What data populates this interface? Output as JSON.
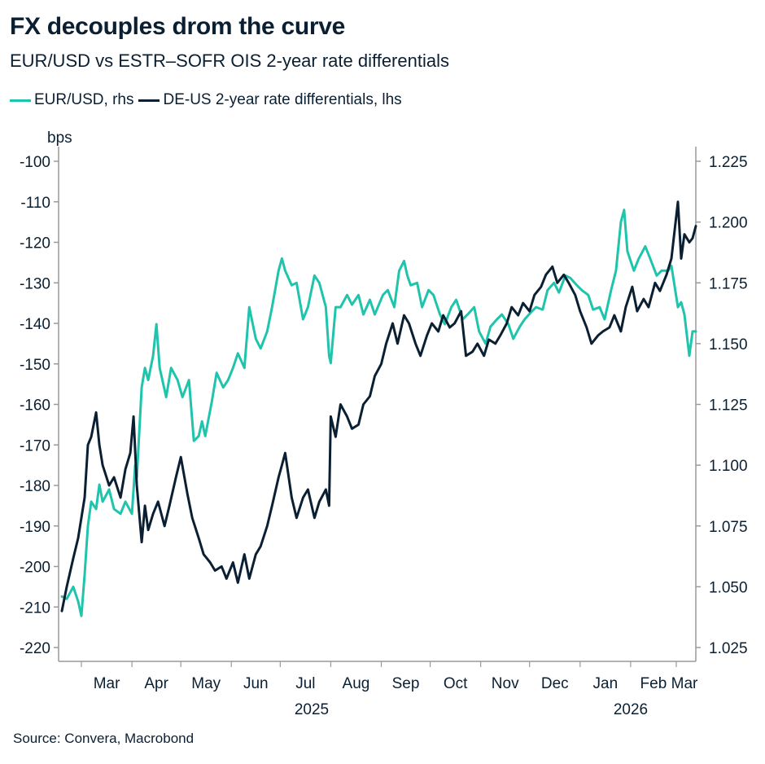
{
  "title": "FX decouples drom the curve",
  "subtitle": "EUR/USD vs ESTR–SOFR OIS 2-year rate differentials",
  "source": "Source: Convera, Macrobond",
  "colors": {
    "eurusd": "#1fc4ac",
    "diff": "#0b1f33",
    "axis": "#9a9a9a"
  },
  "chart_data": {
    "type": "line",
    "left_axis": {
      "unit_label": "bps",
      "ylim": [
        -220,
        -100
      ],
      "ticks": [
        "-100",
        "-110",
        "-120",
        "-130",
        "-140",
        "-150",
        "-160",
        "-170",
        "-180",
        "-190",
        "-200",
        "-210",
        "-220"
      ]
    },
    "right_axis": {
      "ylim": [
        1.025,
        1.225
      ],
      "ticks": [
        "1.225",
        "1.200",
        "1.175",
        "1.150",
        "1.125",
        "1.100",
        "1.075",
        "1.050",
        "1.025"
      ]
    },
    "x_months": [
      "Mar",
      "Apr",
      "May",
      "Jun",
      "Jul",
      "Aug",
      "Sep",
      "Oct",
      "Nov",
      "Dec",
      "Jan",
      "Feb",
      "Mar"
    ],
    "x_years": [
      "2025",
      "2026"
    ],
    "x_range": [
      "2025-02-15",
      "2026-03-13"
    ],
    "series": [
      {
        "name": "EUR/USD, rhs",
        "axis": "right",
        "color": "#1fc4ac",
        "points": [
          [
            "2025-02-17",
            1.046
          ],
          [
            "2025-02-20",
            1.045
          ],
          [
            "2025-02-24",
            1.05
          ],
          [
            "2025-02-27",
            1.044
          ],
          [
            "2025-03-01",
            1.038
          ],
          [
            "2025-03-03",
            1.055
          ],
          [
            "2025-03-05",
            1.075
          ],
          [
            "2025-03-07",
            1.085
          ],
          [
            "2025-03-10",
            1.082
          ],
          [
            "2025-03-12",
            1.092
          ],
          [
            "2025-03-14",
            1.085
          ],
          [
            "2025-03-18",
            1.09
          ],
          [
            "2025-03-21",
            1.082
          ],
          [
            "2025-03-25",
            1.08
          ],
          [
            "2025-03-28",
            1.085
          ],
          [
            "2025-04-01",
            1.08
          ],
          [
            "2025-04-03",
            1.1
          ],
          [
            "2025-04-04",
            1.095
          ],
          [
            "2025-04-07",
            1.132
          ],
          [
            "2025-04-09",
            1.14
          ],
          [
            "2025-04-11",
            1.135
          ],
          [
            "2025-04-14",
            1.145
          ],
          [
            "2025-04-16",
            1.158
          ],
          [
            "2025-04-18",
            1.14
          ],
          [
            "2025-04-22",
            1.128
          ],
          [
            "2025-04-25",
            1.14
          ],
          [
            "2025-04-29",
            1.135
          ],
          [
            "2025-05-02",
            1.128
          ],
          [
            "2025-05-06",
            1.135
          ],
          [
            "2025-05-09",
            1.11
          ],
          [
            "2025-05-12",
            1.112
          ],
          [
            "2025-05-14",
            1.118
          ],
          [
            "2025-05-16",
            1.112
          ],
          [
            "2025-05-20",
            1.126
          ],
          [
            "2025-05-23",
            1.138
          ],
          [
            "2025-05-27",
            1.132
          ],
          [
            "2025-05-30",
            1.135
          ],
          [
            "2025-06-02",
            1.14
          ],
          [
            "2025-06-05",
            1.146
          ],
          [
            "2025-06-09",
            1.14
          ],
          [
            "2025-06-12",
            1.165
          ],
          [
            "2025-06-16",
            1.152
          ],
          [
            "2025-06-19",
            1.148
          ],
          [
            "2025-06-23",
            1.155
          ],
          [
            "2025-06-26",
            1.165
          ],
          [
            "2025-06-30",
            1.18
          ],
          [
            "2025-07-02",
            1.185
          ],
          [
            "2025-07-04",
            1.18
          ],
          [
            "2025-07-08",
            1.174
          ],
          [
            "2025-07-11",
            1.175
          ],
          [
            "2025-07-15",
            1.16
          ],
          [
            "2025-07-18",
            1.165
          ],
          [
            "2025-07-22",
            1.178
          ],
          [
            "2025-07-25",
            1.175
          ],
          [
            "2025-07-29",
            1.165
          ],
          [
            "2025-07-31",
            1.145
          ],
          [
            "2025-08-01",
            1.142
          ],
          [
            "2025-08-04",
            1.165
          ],
          [
            "2025-08-07",
            1.165
          ],
          [
            "2025-08-11",
            1.17
          ],
          [
            "2025-08-14",
            1.166
          ],
          [
            "2025-08-18",
            1.17
          ],
          [
            "2025-08-21",
            1.162
          ],
          [
            "2025-08-25",
            1.168
          ],
          [
            "2025-08-28",
            1.162
          ],
          [
            "2025-09-02",
            1.17
          ],
          [
            "2025-09-05",
            1.172
          ],
          [
            "2025-09-09",
            1.165
          ],
          [
            "2025-09-12",
            1.18
          ],
          [
            "2025-09-15",
            1.184
          ],
          [
            "2025-09-17",
            1.178
          ],
          [
            "2025-09-19",
            1.174
          ],
          [
            "2025-09-23",
            1.175
          ],
          [
            "2025-09-26",
            1.165
          ],
          [
            "2025-09-30",
            1.172
          ],
          [
            "2025-10-03",
            1.17
          ],
          [
            "2025-10-07",
            1.162
          ],
          [
            "2025-10-10",
            1.158
          ],
          [
            "2025-10-14",
            1.165
          ],
          [
            "2025-10-17",
            1.168
          ],
          [
            "2025-10-21",
            1.16
          ],
          [
            "2025-10-24",
            1.162
          ],
          [
            "2025-10-28",
            1.165
          ],
          [
            "2025-10-31",
            1.155
          ],
          [
            "2025-11-04",
            1.15
          ],
          [
            "2025-11-07",
            1.157
          ],
          [
            "2025-11-11",
            1.16
          ],
          [
            "2025-11-14",
            1.162
          ],
          [
            "2025-11-18",
            1.158
          ],
          [
            "2025-11-21",
            1.152
          ],
          [
            "2025-11-25",
            1.157
          ],
          [
            "2025-11-28",
            1.16
          ],
          [
            "2025-12-02",
            1.163
          ],
          [
            "2025-12-05",
            1.165
          ],
          [
            "2025-12-09",
            1.164
          ],
          [
            "2025-12-12",
            1.172
          ],
          [
            "2025-12-16",
            1.175
          ],
          [
            "2025-12-19",
            1.171
          ],
          [
            "2025-12-23",
            1.178
          ],
          [
            "2025-12-26",
            1.177
          ],
          [
            "2025-12-30",
            1.174
          ],
          [
            "2026-01-02",
            1.172
          ],
          [
            "2026-01-06",
            1.17
          ],
          [
            "2026-01-09",
            1.164
          ],
          [
            "2026-01-13",
            1.165
          ],
          [
            "2026-01-16",
            1.16
          ],
          [
            "2026-01-20",
            1.172
          ],
          [
            "2026-01-23",
            1.18
          ],
          [
            "2026-01-26",
            1.2
          ],
          [
            "2026-01-28",
            1.205
          ],
          [
            "2026-01-30",
            1.188
          ],
          [
            "2026-02-03",
            1.18
          ],
          [
            "2026-02-06",
            1.185
          ],
          [
            "2026-02-10",
            1.19
          ],
          [
            "2026-02-13",
            1.185
          ],
          [
            "2026-02-17",
            1.178
          ],
          [
            "2026-02-20",
            1.18
          ],
          [
            "2026-02-24",
            1.18
          ],
          [
            "2026-02-26",
            1.182
          ],
          [
            "2026-03-02",
            1.165
          ],
          [
            "2026-03-04",
            1.167
          ],
          [
            "2026-03-06",
            1.162
          ],
          [
            "2026-03-09",
            1.145
          ],
          [
            "2026-03-11",
            1.155
          ],
          [
            "2026-03-13",
            1.155
          ]
        ]
      },
      {
        "name": "DE-US 2-year rate differentials, lhs",
        "axis": "left",
        "color": "#0b1f33",
        "points": [
          [
            "2025-02-17",
            -211
          ],
          [
            "2025-02-20",
            -205
          ],
          [
            "2025-02-24",
            -198
          ],
          [
            "2025-02-27",
            -193
          ],
          [
            "2025-03-01",
            -188
          ],
          [
            "2025-03-03",
            -183
          ],
          [
            "2025-03-05",
            -170
          ],
          [
            "2025-03-07",
            -168
          ],
          [
            "2025-03-10",
            -162
          ],
          [
            "2025-03-12",
            -170
          ],
          [
            "2025-03-14",
            -175
          ],
          [
            "2025-03-18",
            -180
          ],
          [
            "2025-03-21",
            -178
          ],
          [
            "2025-03-25",
            -183
          ],
          [
            "2025-03-28",
            -176
          ],
          [
            "2025-03-31",
            -172
          ],
          [
            "2025-04-02",
            -163
          ],
          [
            "2025-04-04",
            -180
          ],
          [
            "2025-04-07",
            -194
          ],
          [
            "2025-04-09",
            -185
          ],
          [
            "2025-04-11",
            -191
          ],
          [
            "2025-04-14",
            -187
          ],
          [
            "2025-04-17",
            -184
          ],
          [
            "2025-04-21",
            -190
          ],
          [
            "2025-04-24",
            -185
          ],
          [
            "2025-04-28",
            -178
          ],
          [
            "2025-05-01",
            -173
          ],
          [
            "2025-05-05",
            -182
          ],
          [
            "2025-05-08",
            -188
          ],
          [
            "2025-05-12",
            -193
          ],
          [
            "2025-05-15",
            -197
          ],
          [
            "2025-05-19",
            -199
          ],
          [
            "2025-05-22",
            -201
          ],
          [
            "2025-05-26",
            -200
          ],
          [
            "2025-05-29",
            -203
          ],
          [
            "2025-06-02",
            -199
          ],
          [
            "2025-06-05",
            -204
          ],
          [
            "2025-06-09",
            -197
          ],
          [
            "2025-06-12",
            -203
          ],
          [
            "2025-06-16",
            -197
          ],
          [
            "2025-06-19",
            -195
          ],
          [
            "2025-06-23",
            -190
          ],
          [
            "2025-06-26",
            -185
          ],
          [
            "2025-06-30",
            -178
          ],
          [
            "2025-07-02",
            -175
          ],
          [
            "2025-07-04",
            -172
          ],
          [
            "2025-07-08",
            -183
          ],
          [
            "2025-07-11",
            -188
          ],
          [
            "2025-07-15",
            -183
          ],
          [
            "2025-07-18",
            -181
          ],
          [
            "2025-07-22",
            -188
          ],
          [
            "2025-07-25",
            -184
          ],
          [
            "2025-07-29",
            -181
          ],
          [
            "2025-07-31",
            -185
          ],
          [
            "2025-08-01",
            -163
          ],
          [
            "2025-08-04",
            -168
          ],
          [
            "2025-08-07",
            -160
          ],
          [
            "2025-08-11",
            -163
          ],
          [
            "2025-08-14",
            -166
          ],
          [
            "2025-08-18",
            -165
          ],
          [
            "2025-08-21",
            -160
          ],
          [
            "2025-08-25",
            -158
          ],
          [
            "2025-08-28",
            -153
          ],
          [
            "2025-09-01",
            -150
          ],
          [
            "2025-09-04",
            -145
          ],
          [
            "2025-09-08",
            -140
          ],
          [
            "2025-09-11",
            -145
          ],
          [
            "2025-09-15",
            -138
          ],
          [
            "2025-09-18",
            -140
          ],
          [
            "2025-09-22",
            -145
          ],
          [
            "2025-09-25",
            -148
          ],
          [
            "2025-09-29",
            -143
          ],
          [
            "2025-10-02",
            -140
          ],
          [
            "2025-10-06",
            -142
          ],
          [
            "2025-10-09",
            -138
          ],
          [
            "2025-10-13",
            -141
          ],
          [
            "2025-10-16",
            -140
          ],
          [
            "2025-10-20",
            -137
          ],
          [
            "2025-10-23",
            -148
          ],
          [
            "2025-10-27",
            -147
          ],
          [
            "2025-10-30",
            -145
          ],
          [
            "2025-11-03",
            -148
          ],
          [
            "2025-11-06",
            -144
          ],
          [
            "2025-11-10",
            -145
          ],
          [
            "2025-11-13",
            -143
          ],
          [
            "2025-11-17",
            -140
          ],
          [
            "2025-11-20",
            -136
          ],
          [
            "2025-11-24",
            -138
          ],
          [
            "2025-11-27",
            -135
          ],
          [
            "2025-12-01",
            -137
          ],
          [
            "2025-12-04",
            -133
          ],
          [
            "2025-12-08",
            -131
          ],
          [
            "2025-12-11",
            -128
          ],
          [
            "2025-12-15",
            -126
          ],
          [
            "2025-12-18",
            -130
          ],
          [
            "2025-12-22",
            -128
          ],
          [
            "2025-12-25",
            -130
          ],
          [
            "2025-12-29",
            -133
          ],
          [
            "2026-01-01",
            -137
          ],
          [
            "2026-01-05",
            -141
          ],
          [
            "2026-01-08",
            -145
          ],
          [
            "2026-01-12",
            -143
          ],
          [
            "2026-01-15",
            -142
          ],
          [
            "2026-01-19",
            -141
          ],
          [
            "2026-01-22",
            -138
          ],
          [
            "2026-01-26",
            -142
          ],
          [
            "2026-01-29",
            -136
          ],
          [
            "2026-02-02",
            -131
          ],
          [
            "2026-02-05",
            -137
          ],
          [
            "2026-02-09",
            -134
          ],
          [
            "2026-02-12",
            -136
          ],
          [
            "2026-02-16",
            -130
          ],
          [
            "2026-02-19",
            -132
          ],
          [
            "2026-02-23",
            -128
          ],
          [
            "2026-02-26",
            -124
          ],
          [
            "2026-03-02",
            -110
          ],
          [
            "2026-03-04",
            -124
          ],
          [
            "2026-03-06",
            -118
          ],
          [
            "2026-03-09",
            -120
          ],
          [
            "2026-03-11",
            -119
          ],
          [
            "2026-03-13",
            -116
          ]
        ]
      }
    ],
    "grid": false,
    "legend_position": "top-left"
  }
}
